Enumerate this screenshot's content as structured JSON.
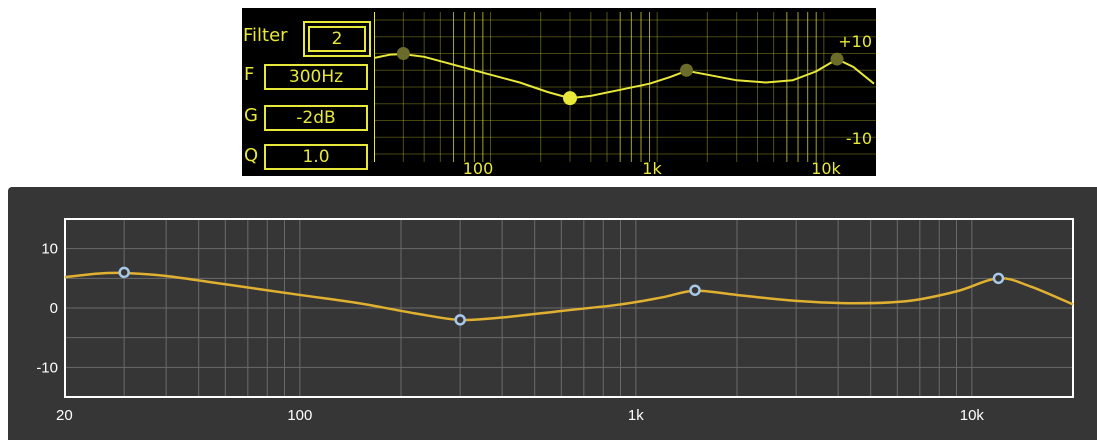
{
  "legacy": {
    "labels": {
      "filter": "Filter",
      "freq": "F",
      "gain": "G",
      "q": "Q"
    },
    "values": {
      "filter": "2",
      "freq": "300Hz",
      "gain": "-2dB",
      "q": "1.0"
    },
    "x_ticks": [
      "100",
      "1k",
      "10k"
    ],
    "y_ticks": [
      "+10",
      "-10"
    ],
    "accent_color": "#e8e83a"
  },
  "chart_data": {
    "type": "line",
    "x_scale": "log",
    "xlim": [
      20,
      20000
    ],
    "ylim": [
      -15,
      15
    ],
    "x_ticks": [
      {
        "value": 20,
        "label": "20"
      },
      {
        "value": 100,
        "label": "100"
      },
      {
        "value": 1000,
        "label": "1k"
      },
      {
        "value": 10000,
        "label": "10k"
      }
    ],
    "y_ticks": [
      {
        "value": 10,
        "label": "10"
      },
      {
        "value": 0,
        "label": "0"
      },
      {
        "value": -10,
        "label": "-10"
      }
    ],
    "grid": true,
    "curve_color": "#e0b030",
    "point_color": "#a8c8e8",
    "curve": [
      {
        "x": 20,
        "y": 5.2
      },
      {
        "x": 25,
        "y": 5.8
      },
      {
        "x": 30,
        "y": 5.9
      },
      {
        "x": 40,
        "y": 5.4
      },
      {
        "x": 60,
        "y": 4.0
      },
      {
        "x": 100,
        "y": 2.2
      },
      {
        "x": 150,
        "y": 0.8
      },
      {
        "x": 220,
        "y": -0.9
      },
      {
        "x": 300,
        "y": -2.0
      },
      {
        "x": 400,
        "y": -1.6
      },
      {
        "x": 600,
        "y": -0.5
      },
      {
        "x": 900,
        "y": 0.6
      },
      {
        "x": 1200,
        "y": 1.8
      },
      {
        "x": 1500,
        "y": 2.9
      },
      {
        "x": 2000,
        "y": 2.2
      },
      {
        "x": 3000,
        "y": 1.2
      },
      {
        "x": 4500,
        "y": 0.8
      },
      {
        "x": 6500,
        "y": 1.2
      },
      {
        "x": 9000,
        "y": 2.8
      },
      {
        "x": 12000,
        "y": 5.0
      },
      {
        "x": 15000,
        "y": 3.6
      },
      {
        "x": 20000,
        "y": 0.6
      }
    ],
    "points": [
      {
        "x": 30,
        "y": 6
      },
      {
        "x": 300,
        "y": -2
      },
      {
        "x": 1500,
        "y": 3
      },
      {
        "x": 12000,
        "y": 5
      }
    ]
  }
}
